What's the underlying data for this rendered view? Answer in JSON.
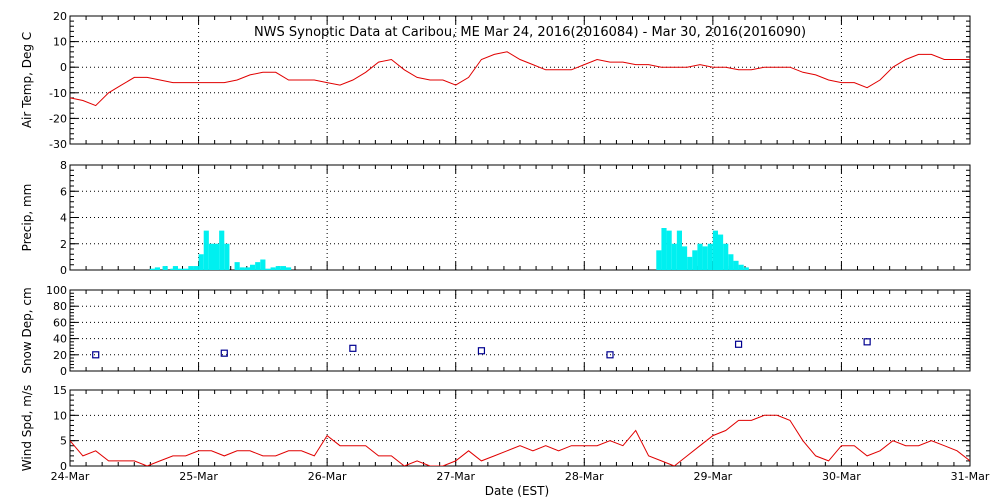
{
  "title": "NWS Synoptic Data at Caribou, ME   Mar 24, 2016(2016084) - Mar 30, 2016(2016090)",
  "x_axis_label": "Date (EST)",
  "colors": {
    "temperature_line": "#e00000",
    "precip_bar": "#00f0f0",
    "snow_marker": "#000090",
    "wind_line": "#e00000",
    "axis": "#000000"
  },
  "chart_data": [
    {
      "type": "line",
      "panel": "air-temp",
      "ylabel": "Air Temp, Deg C",
      "ylim": [
        -30,
        20
      ],
      "yticks": [
        20,
        10,
        0,
        -10,
        -20,
        -30
      ],
      "xlim": [
        0,
        7
      ],
      "xticks": [
        0,
        1,
        2,
        3,
        4,
        5,
        6,
        7
      ],
      "grid": true,
      "series": [
        {
          "x": [
            0,
            0.1,
            0.2,
            0.3,
            0.4,
            0.5,
            0.6,
            0.7,
            0.8,
            0.9,
            1.0,
            1.1,
            1.2,
            1.3,
            1.4,
            1.5,
            1.6,
            1.7,
            1.8,
            1.9,
            2.0,
            2.1,
            2.2,
            2.3,
            2.4,
            2.5,
            2.6,
            2.7,
            2.8,
            2.9,
            3.0,
            3.1,
            3.2,
            3.3,
            3.4,
            3.5,
            3.6,
            3.7,
            3.8,
            3.9,
            4.0,
            4.1,
            4.2,
            4.3,
            4.4,
            4.5,
            4.6,
            4.7,
            4.8,
            4.9,
            5.0,
            5.1,
            5.2,
            5.3,
            5.4,
            5.5,
            5.6,
            5.7,
            5.8,
            5.9,
            6.0,
            6.1,
            6.2,
            6.3,
            6.4,
            6.5,
            6.6,
            6.7,
            6.8,
            6.9,
            7.0
          ],
          "y": [
            -12,
            -13,
            -15,
            -10,
            -7,
            -4,
            -4,
            -5,
            -6,
            -6,
            -6,
            -6,
            -6,
            -5,
            -3,
            -2,
            -2,
            -5,
            -5,
            -5,
            -6,
            -7,
            -5,
            -2,
            2,
            3,
            -1,
            -4,
            -5,
            -5,
            -7,
            -4,
            3,
            5,
            6,
            3,
            1,
            -1,
            -1,
            -1,
            1,
            3,
            2,
            2,
            1,
            1,
            0,
            0,
            0,
            1,
            0,
            0,
            -1,
            -1,
            0,
            0,
            0,
            -2,
            -3,
            -5,
            -6,
            -6,
            -8,
            -5,
            0,
            3,
            5,
            5,
            3,
            3,
            3
          ]
        }
      ]
    },
    {
      "type": "bar",
      "panel": "precip",
      "ylabel": "Precip, mm",
      "ylim": [
        0,
        8
      ],
      "yticks": [
        8,
        6,
        4,
        2,
        0
      ],
      "xlim": [
        0,
        7
      ],
      "grid": true,
      "bar_width": 0.04,
      "x": [
        0.62,
        0.66,
        0.72,
        0.78,
        0.8,
        0.84,
        0.88,
        0.92,
        0.96,
        1.0,
        1.04,
        1.08,
        1.12,
        1.16,
        1.2,
        1.28,
        1.32,
        1.36,
        1.4,
        1.44,
        1.48,
        1.52,
        1.56,
        1.6,
        1.64,
        1.68,
        4.56,
        4.6,
        4.64,
        4.68,
        4.72,
        4.76,
        4.8,
        4.84,
        4.88,
        4.92,
        4.96,
        5.0,
        5.04,
        5.08,
        5.12,
        5.16,
        5.2,
        5.24,
        5.28
      ],
      "values": [
        0.1,
        0.2,
        0.3,
        0.1,
        0.3,
        0.1,
        0.1,
        0.3,
        0.3,
        1.2,
        3.0,
        2.0,
        2.0,
        3.0,
        2.0,
        0.6,
        0.2,
        0.2,
        0.4,
        0.6,
        0.8,
        0.1,
        0.2,
        0.3,
        0.3,
        0.2,
        1.5,
        3.2,
        3.0,
        2.0,
        3.0,
        1.8,
        1.0,
        1.5,
        2.0,
        1.8,
        2.0,
        3.0,
        2.7,
        2.0,
        1.2,
        0.7,
        0.4,
        0.2,
        0.0
      ]
    },
    {
      "type": "scatter",
      "panel": "snow-depth",
      "ylabel": "Snow Dep, cm",
      "ylim": [
        0,
        100
      ],
      "yticks": [
        100,
        80,
        60,
        40,
        20,
        0
      ],
      "xlim": [
        0,
        7
      ],
      "grid": true,
      "series": [
        {
          "x": [
            0.2,
            1.2,
            2.2,
            3.2,
            4.2,
            5.2,
            6.2
          ],
          "y": [
            20,
            22,
            28,
            25,
            20,
            33,
            36
          ]
        }
      ]
    },
    {
      "type": "line",
      "panel": "wind-speed",
      "ylabel": "Wind Spd, m/s",
      "ylim": [
        0,
        15
      ],
      "yticks": [
        15,
        10,
        5,
        0
      ],
      "xlim": [
        0,
        7
      ],
      "xticks": [
        0,
        1,
        2,
        3,
        4,
        5,
        6,
        7
      ],
      "xticklabels": [
        "24-Mar",
        "25-Mar",
        "26-Mar",
        "27-Mar",
        "28-Mar",
        "29-Mar",
        "30-Mar",
        "31-Mar"
      ],
      "grid": true,
      "series": [
        {
          "x": [
            0,
            0.1,
            0.2,
            0.3,
            0.4,
            0.5,
            0.6,
            0.7,
            0.8,
            0.9,
            1.0,
            1.1,
            1.2,
            1.3,
            1.4,
            1.5,
            1.6,
            1.7,
            1.8,
            1.9,
            2.0,
            2.1,
            2.2,
            2.3,
            2.4,
            2.5,
            2.6,
            2.7,
            2.8,
            2.9,
            3.0,
            3.1,
            3.2,
            3.3,
            3.4,
            3.5,
            3.6,
            3.7,
            3.8,
            3.9,
            4.0,
            4.1,
            4.2,
            4.3,
            4.4,
            4.5,
            4.6,
            4.7,
            4.8,
            4.9,
            5.0,
            5.1,
            5.2,
            5.3,
            5.4,
            5.5,
            5.6,
            5.7,
            5.8,
            5.9,
            6.0,
            6.1,
            6.2,
            6.3,
            6.4,
            6.5,
            6.6,
            6.7,
            6.8,
            6.9,
            7.0
          ],
          "y": [
            5,
            2,
            3,
            1,
            1,
            1,
            0,
            1,
            2,
            2,
            3,
            3,
            2,
            3,
            3,
            2,
            2,
            3,
            3,
            2,
            6,
            4,
            4,
            4,
            2,
            2,
            0,
            1,
            0,
            0,
            1,
            3,
            1,
            2,
            3,
            4,
            3,
            4,
            3,
            4,
            4,
            4,
            5,
            4,
            7,
            2,
            1,
            0,
            2,
            4,
            6,
            7,
            9,
            9,
            10,
            10,
            9,
            5,
            2,
            1,
            4,
            4,
            2,
            3,
            5,
            4,
            4,
            5,
            4,
            3,
            1
          ]
        }
      ]
    }
  ]
}
